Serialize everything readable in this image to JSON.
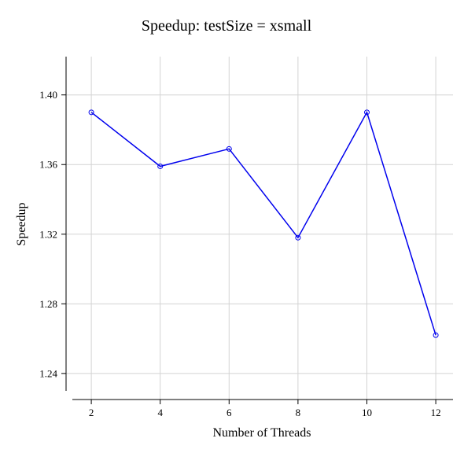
{
  "chart_data": {
    "type": "line",
    "title": "Speedup: testSize = xsmall",
    "xlabel": "Number of Threads",
    "ylabel": "Speedup",
    "x": [
      2,
      4,
      6,
      8,
      10,
      12
    ],
    "xticks": [
      "2",
      "4",
      "6",
      "8",
      "10",
      "12"
    ],
    "yticks": [
      "1.24",
      "1.28",
      "1.32",
      "1.36",
      "1.40"
    ],
    "xlim": [
      1.45,
      12.5
    ],
    "ylim": [
      1.23,
      1.422
    ],
    "series": [
      {
        "values": [
          1.39,
          1.359,
          1.369,
          1.318,
          1.39,
          1.262
        ]
      }
    ],
    "grid": true,
    "color": "#0000ee"
  }
}
